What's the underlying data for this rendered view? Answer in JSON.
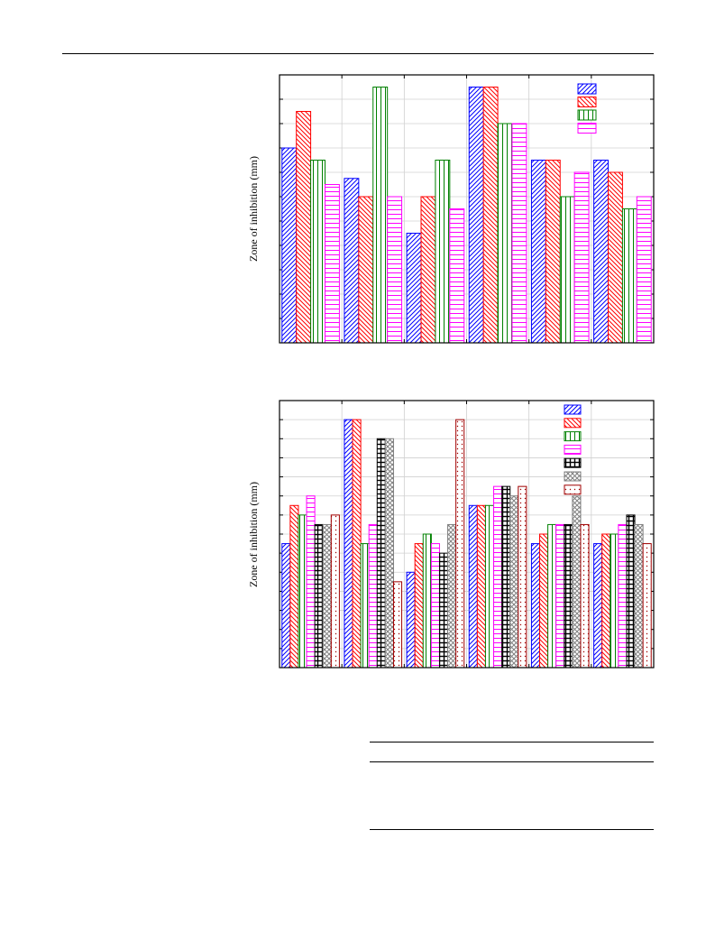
{
  "page": {
    "header_rule": true
  },
  "chart_data": [
    {
      "type": "bar",
      "ylabel": "Zone of inhibition (mm)",
      "grid": true,
      "legend_position": "top-right",
      "ylim": [
        0,
        22
      ],
      "yticks": [
        0,
        2,
        4,
        6,
        8,
        10,
        12,
        14,
        16,
        18,
        20,
        22
      ],
      "groups": 6,
      "series": [
        {
          "color": "#0000ff",
          "hatch": "diag-right",
          "values": [
            16,
            13.5,
            9,
            21,
            15,
            15
          ]
        },
        {
          "color": "#ff0000",
          "hatch": "diag-left",
          "values": [
            19,
            12,
            12,
            21,
            15,
            14
          ]
        },
        {
          "color": "#008000",
          "hatch": "vertical",
          "values": [
            15,
            21,
            15,
            18,
            12,
            11
          ]
        },
        {
          "color": "#ff00ff",
          "hatch": "horizontal",
          "values": [
            13,
            12,
            11,
            18,
            14,
            12
          ]
        }
      ]
    },
    {
      "type": "bar",
      "ylabel": "Zone of inhibition (mm)",
      "grid": true,
      "legend_position": "top-right",
      "ylim": [
        0,
        28
      ],
      "yticks": [
        0,
        2,
        4,
        6,
        8,
        10,
        12,
        14,
        16,
        18,
        20,
        22,
        24,
        26,
        28
      ],
      "groups": 6,
      "series": [
        {
          "color": "#0000ff",
          "hatch": "diag-right",
          "values": [
            13,
            26,
            10,
            17,
            13,
            13
          ]
        },
        {
          "color": "#ff0000",
          "hatch": "diag-left",
          "values": [
            17,
            26,
            13,
            17,
            14,
            14
          ]
        },
        {
          "color": "#008000",
          "hatch": "vertical",
          "values": [
            16,
            13,
            14,
            17,
            15,
            14
          ]
        },
        {
          "color": "#ff00ff",
          "hatch": "horizontal",
          "values": [
            18,
            15,
            13,
            19,
            15,
            15
          ]
        },
        {
          "color": "#000000",
          "hatch": "grid",
          "values": [
            15,
            24,
            12,
            19,
            15,
            16
          ]
        },
        {
          "color": "#808080",
          "hatch": "crosshatch",
          "values": [
            15,
            24,
            15,
            18,
            18,
            15
          ]
        },
        {
          "color": "#a00000",
          "hatch": "dots",
          "values": [
            16,
            9,
            26,
            19,
            15,
            13
          ]
        }
      ]
    }
  ]
}
